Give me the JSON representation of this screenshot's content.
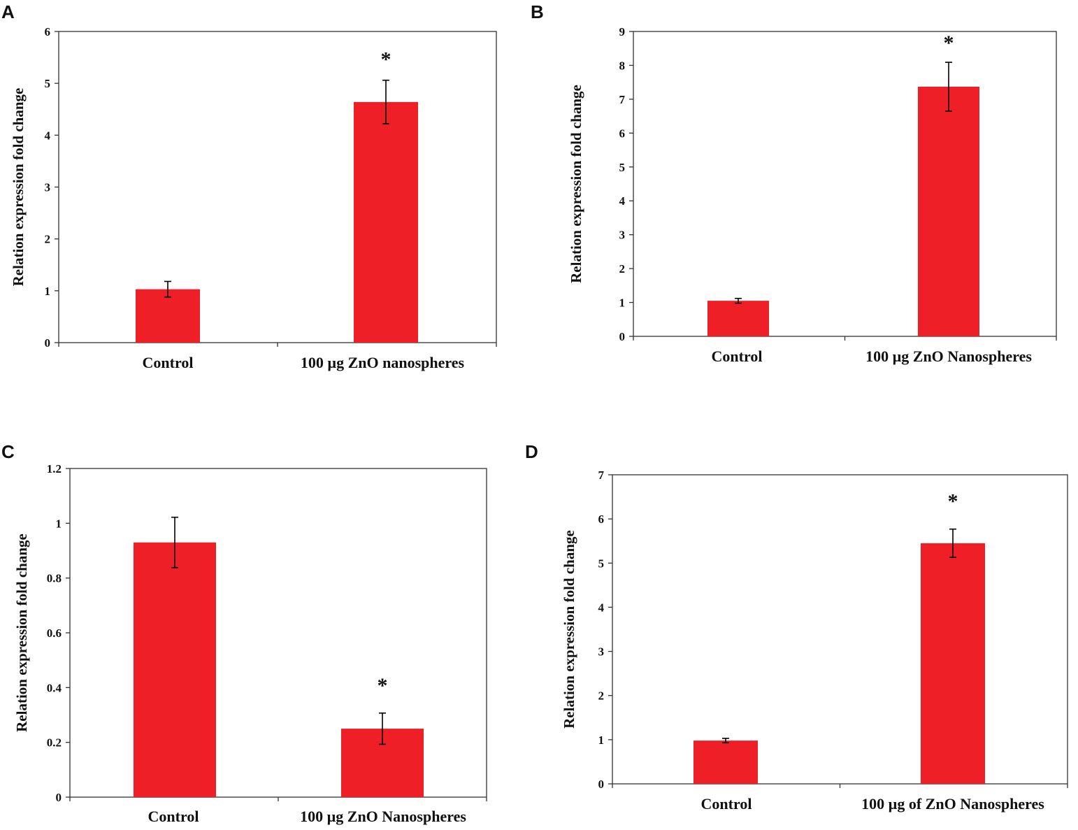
{
  "colors": {
    "bar": "#ee1f26",
    "axis": "#333333",
    "text": "#111111"
  },
  "chart_data": [
    {
      "panel": "A",
      "type": "bar",
      "categories": [
        "Control",
        "100 µg ZnO nanospheres"
      ],
      "values": [
        1.03,
        4.64
      ],
      "errors": [
        0.15,
        0.42
      ],
      "significance": [
        "",
        "*"
      ],
      "ylim": [
        0,
        6
      ],
      "yticks": [
        0,
        1,
        2,
        3,
        4,
        5,
        6
      ],
      "ytick_labels": [
        "0",
        "1",
        "2",
        "3",
        "4",
        "5",
        "6"
      ],
      "ylabel": "Relation expression fold change",
      "xlabel": ""
    },
    {
      "panel": "B",
      "type": "bar",
      "categories": [
        "Control",
        "100 µg ZnO Nanospheres"
      ],
      "values": [
        1.05,
        7.37
      ],
      "errors": [
        0.07,
        0.72
      ],
      "significance": [
        "",
        "*"
      ],
      "ylim": [
        0,
        9
      ],
      "yticks": [
        0,
        1,
        2,
        3,
        4,
        5,
        6,
        7,
        8,
        9
      ],
      "ytick_labels": [
        "0",
        "1",
        "2",
        "3",
        "4",
        "5",
        "6",
        "7",
        "8",
        "9"
      ],
      "ylabel": "Relation  expression fold change",
      "xlabel": ""
    },
    {
      "panel": "C",
      "type": "bar",
      "categories": [
        "Control",
        "100 µg ZnO Nanospheres"
      ],
      "values": [
        0.93,
        0.25
      ],
      "errors": [
        0.092,
        0.057
      ],
      "significance": [
        "",
        "*"
      ],
      "ylim": [
        0,
        1.2
      ],
      "yticks": [
        0,
        0.2,
        0.4,
        0.6,
        0.8,
        1.0,
        1.2
      ],
      "ytick_labels": [
        "0",
        "0.2",
        "0.4",
        "0.6",
        "0.8",
        "1",
        "1.2"
      ],
      "ylabel": "Relation expression fold change",
      "xlabel": ""
    },
    {
      "panel": "D",
      "type": "bar",
      "categories": [
        "Control",
        "100 µg of ZnO  Nanospheres"
      ],
      "values": [
        0.98,
        5.45
      ],
      "errors": [
        0.05,
        0.32
      ],
      "significance": [
        "",
        "*"
      ],
      "ylim": [
        0,
        7
      ],
      "yticks": [
        0,
        1,
        2,
        3,
        4,
        5,
        6,
        7
      ],
      "ytick_labels": [
        "0",
        "1",
        "2",
        "3",
        "4",
        "5",
        "6",
        "7"
      ],
      "ylabel": "Relation expression fold change",
      "xlabel": ""
    }
  ]
}
